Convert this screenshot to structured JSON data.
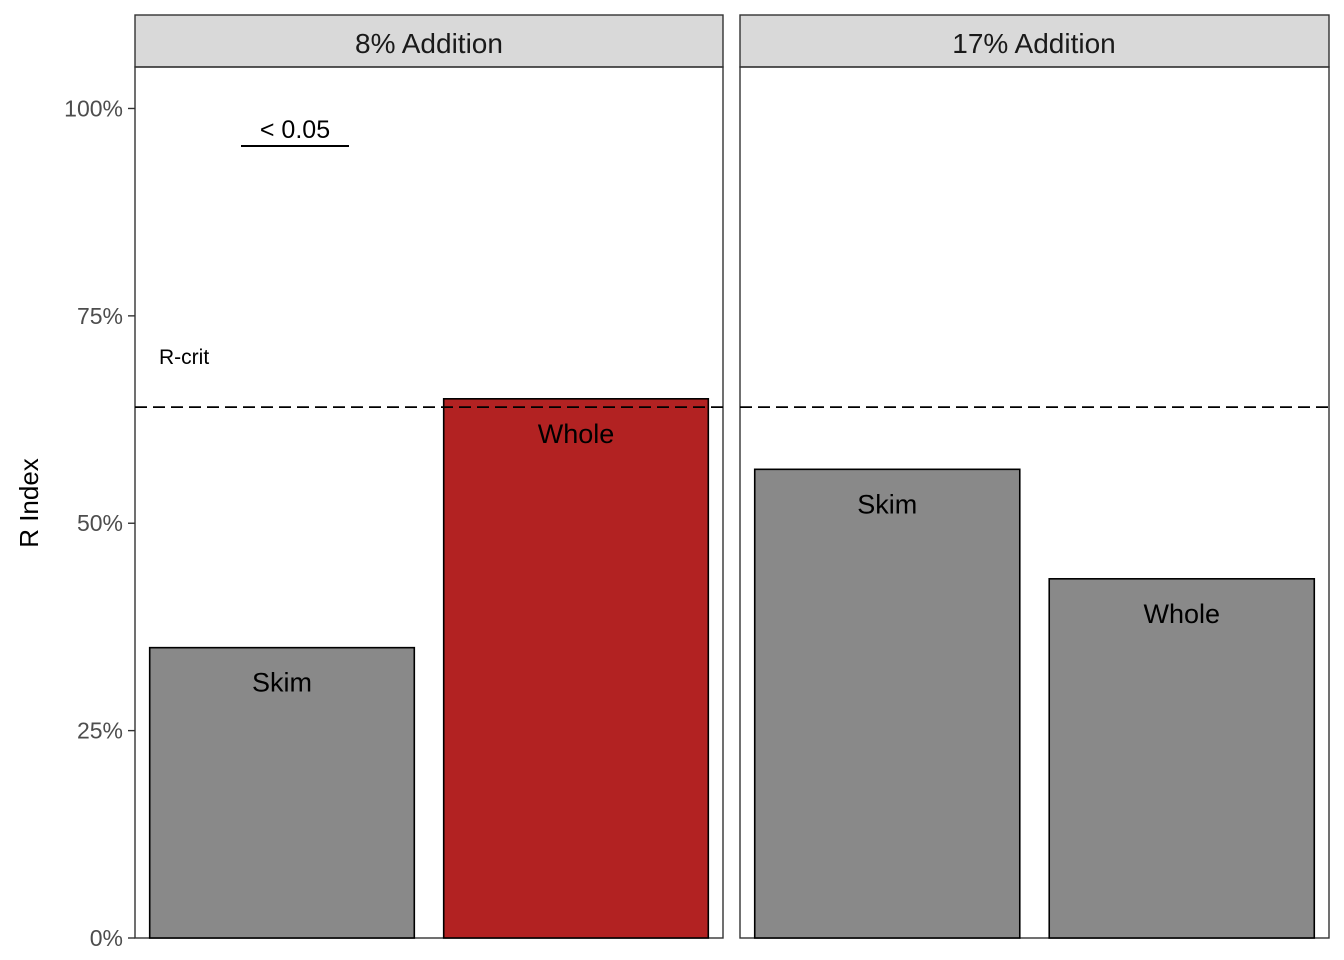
{
  "chart_data": {
    "type": "bar",
    "ylabel": "R Index",
    "ylim": [
      0,
      1.05
    ],
    "y_ticks": [
      {
        "value": 0,
        "label": "0%"
      },
      {
        "value": 0.25,
        "label": "25%"
      },
      {
        "value": 0.5,
        "label": "50%"
      },
      {
        "value": 0.75,
        "label": "75%"
      },
      {
        "value": 1.0,
        "label": "100%"
      }
    ],
    "r_crit": {
      "value": 0.64,
      "label": "R-crit",
      "style": "dashed"
    },
    "panels": [
      {
        "title": "8% Addition",
        "annotation": {
          "label": "< 0.05",
          "value": 0.95
        },
        "bars": [
          {
            "category": "Skim",
            "value": 0.35,
            "color": "#898989"
          },
          {
            "category": "Whole",
            "value": 0.65,
            "color": "#b22222"
          }
        ]
      },
      {
        "title": "17% Addition",
        "bars": [
          {
            "category": "Skim",
            "value": 0.565,
            "color": "#898989"
          },
          {
            "category": "Whole",
            "value": 0.433,
            "color": "#898989"
          }
        ]
      }
    ],
    "grid": false,
    "legend": "none"
  }
}
